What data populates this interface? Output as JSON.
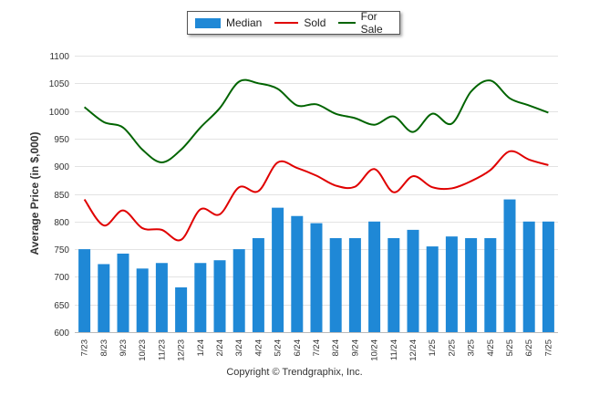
{
  "chart_data": {
    "type": "bar",
    "title": "",
    "xlabel": "",
    "ylabel": "Average Price (in $,000)",
    "ylim": [
      600,
      1100
    ],
    "yticks": [
      600,
      650,
      700,
      750,
      800,
      850,
      900,
      950,
      1000,
      1050,
      1100
    ],
    "grid": true,
    "legend_position": "top-center",
    "categories": [
      "7/23",
      "8/23",
      "9/23",
      "10/23",
      "11/23",
      "12/23",
      "1/24",
      "2/24",
      "3/24",
      "4/24",
      "5/24",
      "6/24",
      "7/24",
      "8/24",
      "9/24",
      "10/24",
      "11/24",
      "12/24",
      "1/25",
      "2/25",
      "3/25",
      "4/25",
      "5/25",
      "6/25",
      "7/25"
    ],
    "series": [
      {
        "name": "Median",
        "type": "bar",
        "color": "#1f88d6",
        "values": [
          750,
          723,
          742,
          715,
          725,
          681,
          725,
          730,
          750,
          770,
          825,
          810,
          797,
          770,
          770,
          800,
          770,
          785,
          755,
          773,
          770,
          770,
          840,
          800,
          800
        ]
      },
      {
        "name": "Sold",
        "type": "line",
        "color": "#e00000",
        "values": [
          840,
          793,
          820,
          788,
          785,
          767,
          822,
          813,
          862,
          855,
          907,
          897,
          883,
          865,
          863,
          895,
          853,
          882,
          862,
          860,
          873,
          893,
          927,
          912,
          902
        ]
      },
      {
        "name": "For Sale",
        "type": "line",
        "color": "#006400",
        "values": [
          1007,
          980,
          970,
          930,
          907,
          930,
          970,
          1005,
          1053,
          1050,
          1040,
          1010,
          1012,
          995,
          987,
          975,
          990,
          962,
          995,
          977,
          1035,
          1055,
          1023,
          1010,
          997
        ]
      }
    ]
  },
  "copyright": "Copyright © Trendgraphix, Inc."
}
